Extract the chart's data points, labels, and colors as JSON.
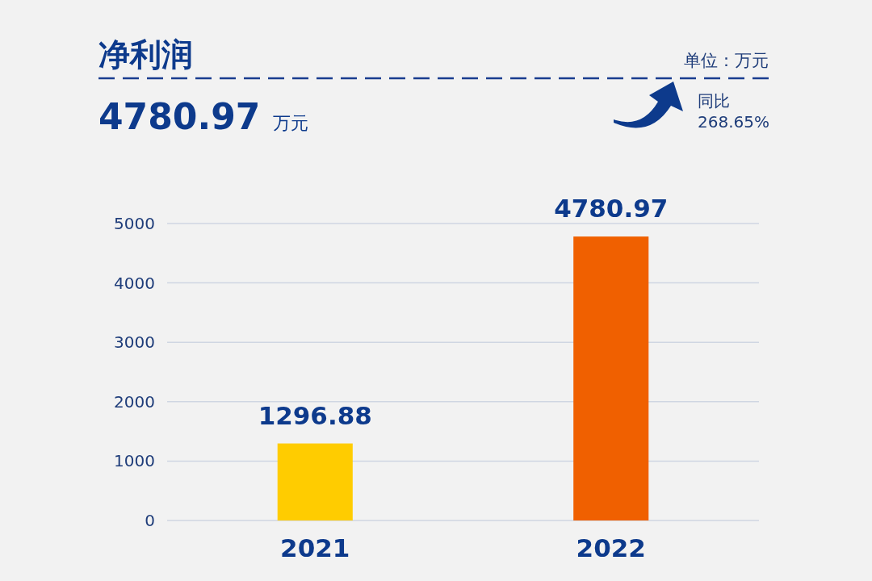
{
  "chart_data": {
    "type": "bar",
    "title": "净利润",
    "subtitle": "4780.97 万元",
    "annotations": [
      "单位：万元",
      "同比 268.65%"
    ],
    "categories": [
      "2021",
      "2022"
    ],
    "values": [
      1296.88,
      4780.97
    ],
    "colors": [
      "#ffcc00",
      "#f06000"
    ],
    "ylim": [
      0,
      5000
    ],
    "yticks": [
      0,
      1000,
      2000,
      3000,
      4000,
      5000
    ],
    "grid": "y",
    "data_labels": true
  }
}
